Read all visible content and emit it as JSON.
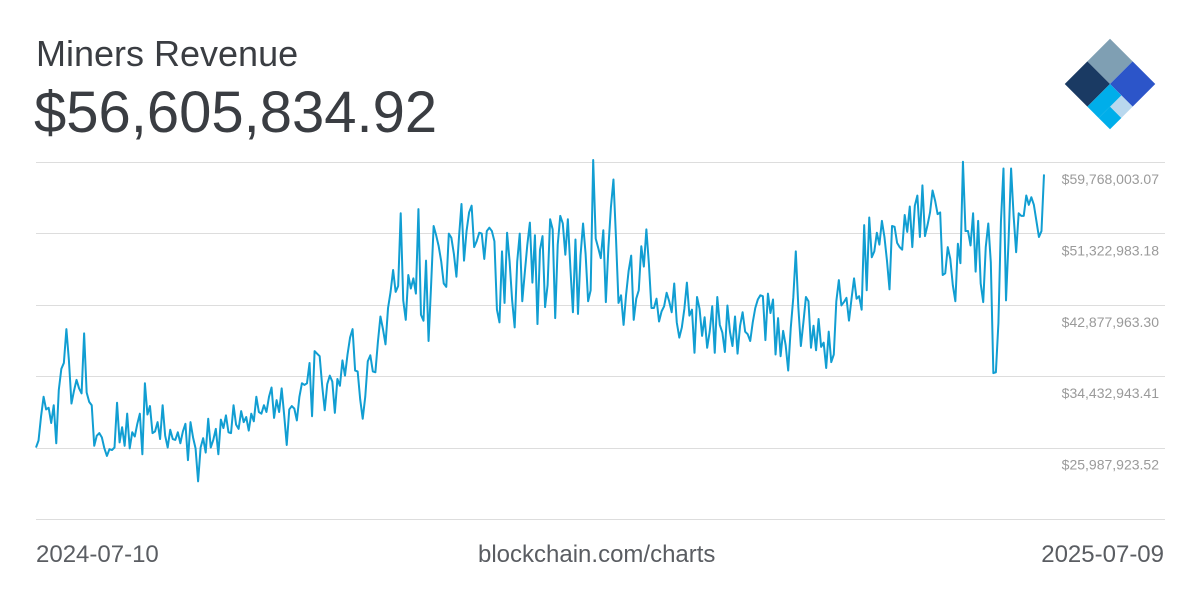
{
  "header": {
    "title": "Miners Revenue",
    "headline_value": "$56,605,834.92"
  },
  "footer": {
    "start_date": "2024-07-10",
    "source": "blockchain.com/charts",
    "end_date": "2025-07-09"
  },
  "logo": {
    "icon": "blockchain-diamond-logo-icon",
    "colors": [
      "#7f9fb3",
      "#1a3a63",
      "#2c55c9",
      "#b9d8ee",
      "#00aeea"
    ]
  },
  "colors": {
    "line": "#119ed2",
    "grid": "#dddddd",
    "tick_label": "#9a9a9a",
    "text": "#3a3d42"
  },
  "chart_data": {
    "type": "line",
    "title": "Miners Revenue",
    "xlabel": "",
    "ylabel": "",
    "x_start": "2024-07-10",
    "x_end": "2025-07-09",
    "ylim": [
      17542903.63,
      59768003.07
    ],
    "y_ticks": [
      59768003.07,
      51322983.18,
      42877963.3,
      34432943.41,
      25987923.52
    ],
    "y_tick_labels": [
      "$59,768,003.07",
      "$51,322,983.18",
      "$42,877,963.30",
      "$34,432,943.41",
      "$25,987,923.52"
    ],
    "grid": true,
    "legend": "none",
    "series": [
      {
        "values": [
          25987924,
          26828000,
          29700000,
          32000000,
          30500000,
          30700000,
          28900000,
          31000000,
          26500000,
          32800000,
          35300000,
          36000000,
          40000000,
          36300000,
          31200000,
          32700000,
          34000000,
          33000000,
          32400000,
          39500000,
          32500000,
          31400000,
          31000000,
          26200000,
          27400000,
          27700000,
          27200000,
          25900000,
          25000000,
          25800000,
          25700000,
          26000000,
          31300000,
          26600000,
          28400000,
          26200000,
          30000000,
          25900000,
          27800000,
          27300000,
          28800000,
          30000000,
          25200000,
          33600000,
          29900000,
          30900000,
          27700000,
          27900000,
          29000000,
          27000000,
          31000000,
          27400000,
          26000000,
          28100000,
          27000000,
          26900000,
          27800000,
          26500000,
          27900000,
          28800000,
          24500000,
          29000000,
          27200000,
          25900000,
          22000000,
          26000000,
          27100000,
          25400000,
          29400000,
          26000000,
          26900000,
          28200000,
          25200000,
          29300000,
          28300000,
          29800000,
          27800000,
          27700000,
          31000000,
          28700000,
          28200000,
          30300000,
          29000000,
          29600000,
          28000000,
          30000000,
          29100000,
          32000000,
          30200000,
          30000000,
          31000000,
          30200000,
          32000000,
          33100000,
          29500000,
          31600000,
          30200000,
          33000000,
          29800000,
          26300000,
          30500000,
          30900000,
          30600000,
          29200000,
          32000000,
          33600000,
          33400000,
          33600000,
          36000000,
          29700000,
          37400000,
          37100000,
          36800000,
          33300000,
          30400000,
          33500000,
          34500000,
          33800000,
          30100000,
          34100000,
          33300000,
          36300000,
          34500000,
          37000000,
          39000000,
          40000000,
          35100000,
          35000000,
          31700000,
          29400000,
          32000000,
          36200000,
          36900000,
          35000000,
          34900000,
          38500000,
          41500000,
          40000000,
          38200000,
          42500000,
          44400000,
          47000000,
          44400000,
          45100000,
          53700000,
          43400000,
          41100000,
          46400000,
          44800000,
          46000000,
          44200000,
          54200000,
          41700000,
          41000000,
          48100000,
          38600000,
          45200000,
          52200000,
          51100000,
          49800000,
          48000000,
          45400000,
          45000000,
          51300000,
          50800000,
          48900000,
          46200000,
          50800000,
          54800000,
          48100000,
          51600000,
          53800000,
          54600000,
          49700000,
          50400000,
          51400000,
          51300000,
          48300000,
          51600000,
          52000000,
          51600000,
          50400000,
          42300000,
          40800000,
          49200000,
          43100000,
          51400000,
          48000000,
          43400000,
          40200000,
          48000000,
          51300000,
          43300000,
          46700000,
          50000000,
          52600000,
          45500000,
          51100000,
          40600000,
          49400000,
          51000000,
          42600000,
          45200000,
          53000000,
          51800000,
          41300000,
          50000000,
          53400000,
          52500000,
          48800000,
          53000000,
          47200000,
          42000000,
          50600000,
          41800000,
          48700000,
          52500000,
          48900000,
          43300000,
          44600000,
          60000000,
          50700000,
          49600000,
          48400000,
          51700000,
          43200000,
          49600000,
          54400000,
          57700000,
          50800000,
          43100000,
          44000000,
          40500000,
          44100000,
          46900000,
          48700000,
          41100000,
          43600000,
          44600000,
          49800000,
          47400000,
          51800000,
          47700000,
          42500000,
          42500000,
          43600000,
          40900000,
          42100000,
          42700000,
          44300000,
          43300000,
          42000000,
          45400000,
          40800000,
          39000000,
          40200000,
          42400000,
          45500000,
          41600000,
          42300000,
          37200000,
          43800000,
          42400000,
          39200000,
          41400000,
          37800000,
          39700000,
          42700000,
          37200000,
          43800000,
          40500000,
          39600000,
          37300000,
          42800000,
          39700000,
          38000000,
          41500000,
          37100000,
          40400000,
          42000000,
          39700000,
          39400000,
          38600000,
          40800000,
          42500000,
          43500000,
          44000000,
          43900000,
          38700000,
          44200000,
          41900000,
          43500000,
          37000000,
          41300000,
          36800000,
          39800000,
          38100000,
          35100000,
          40100000,
          43700000,
          49200000,
          42600000,
          38000000,
          40800000,
          43800000,
          43300000,
          37800000,
          40400000,
          37500000,
          41200000,
          37900000,
          38400000,
          35400000,
          39700000,
          36100000,
          37000000,
          43300000,
          45800000,
          42800000,
          43200000,
          43700000,
          41000000,
          43600000,
          46000000,
          43600000,
          43900000,
          42300000,
          52300000,
          44600000,
          53200000,
          48500000,
          49200000,
          51400000,
          50000000,
          52800000,
          50900000,
          48100000,
          44700000,
          52200000,
          52100000,
          50200000,
          49700000,
          49400000,
          53500000,
          51500000,
          54500000,
          49700000,
          54600000,
          55800000,
          50900000,
          57000000,
          51000000,
          52300000,
          53800000,
          56400000,
          55200000,
          53600000,
          53800000,
          46400000,
          46600000,
          49700000,
          48300000,
          45200000,
          43300000,
          50100000,
          47800000,
          59800000,
          51600000,
          51600000,
          49900000,
          53700000,
          46800000,
          52800000,
          45400000,
          43200000,
          49700000,
          52500000,
          47900000,
          34800000,
          34900000,
          40700000,
          52700000,
          59000000,
          43400000,
          50400000,
          59000000,
          53400000,
          49100000,
          53700000,
          53400000,
          53400000,
          55800000,
          54700000,
          55600000,
          54700000,
          52800000,
          50900000,
          51600000,
          58300000
        ]
      }
    ]
  }
}
